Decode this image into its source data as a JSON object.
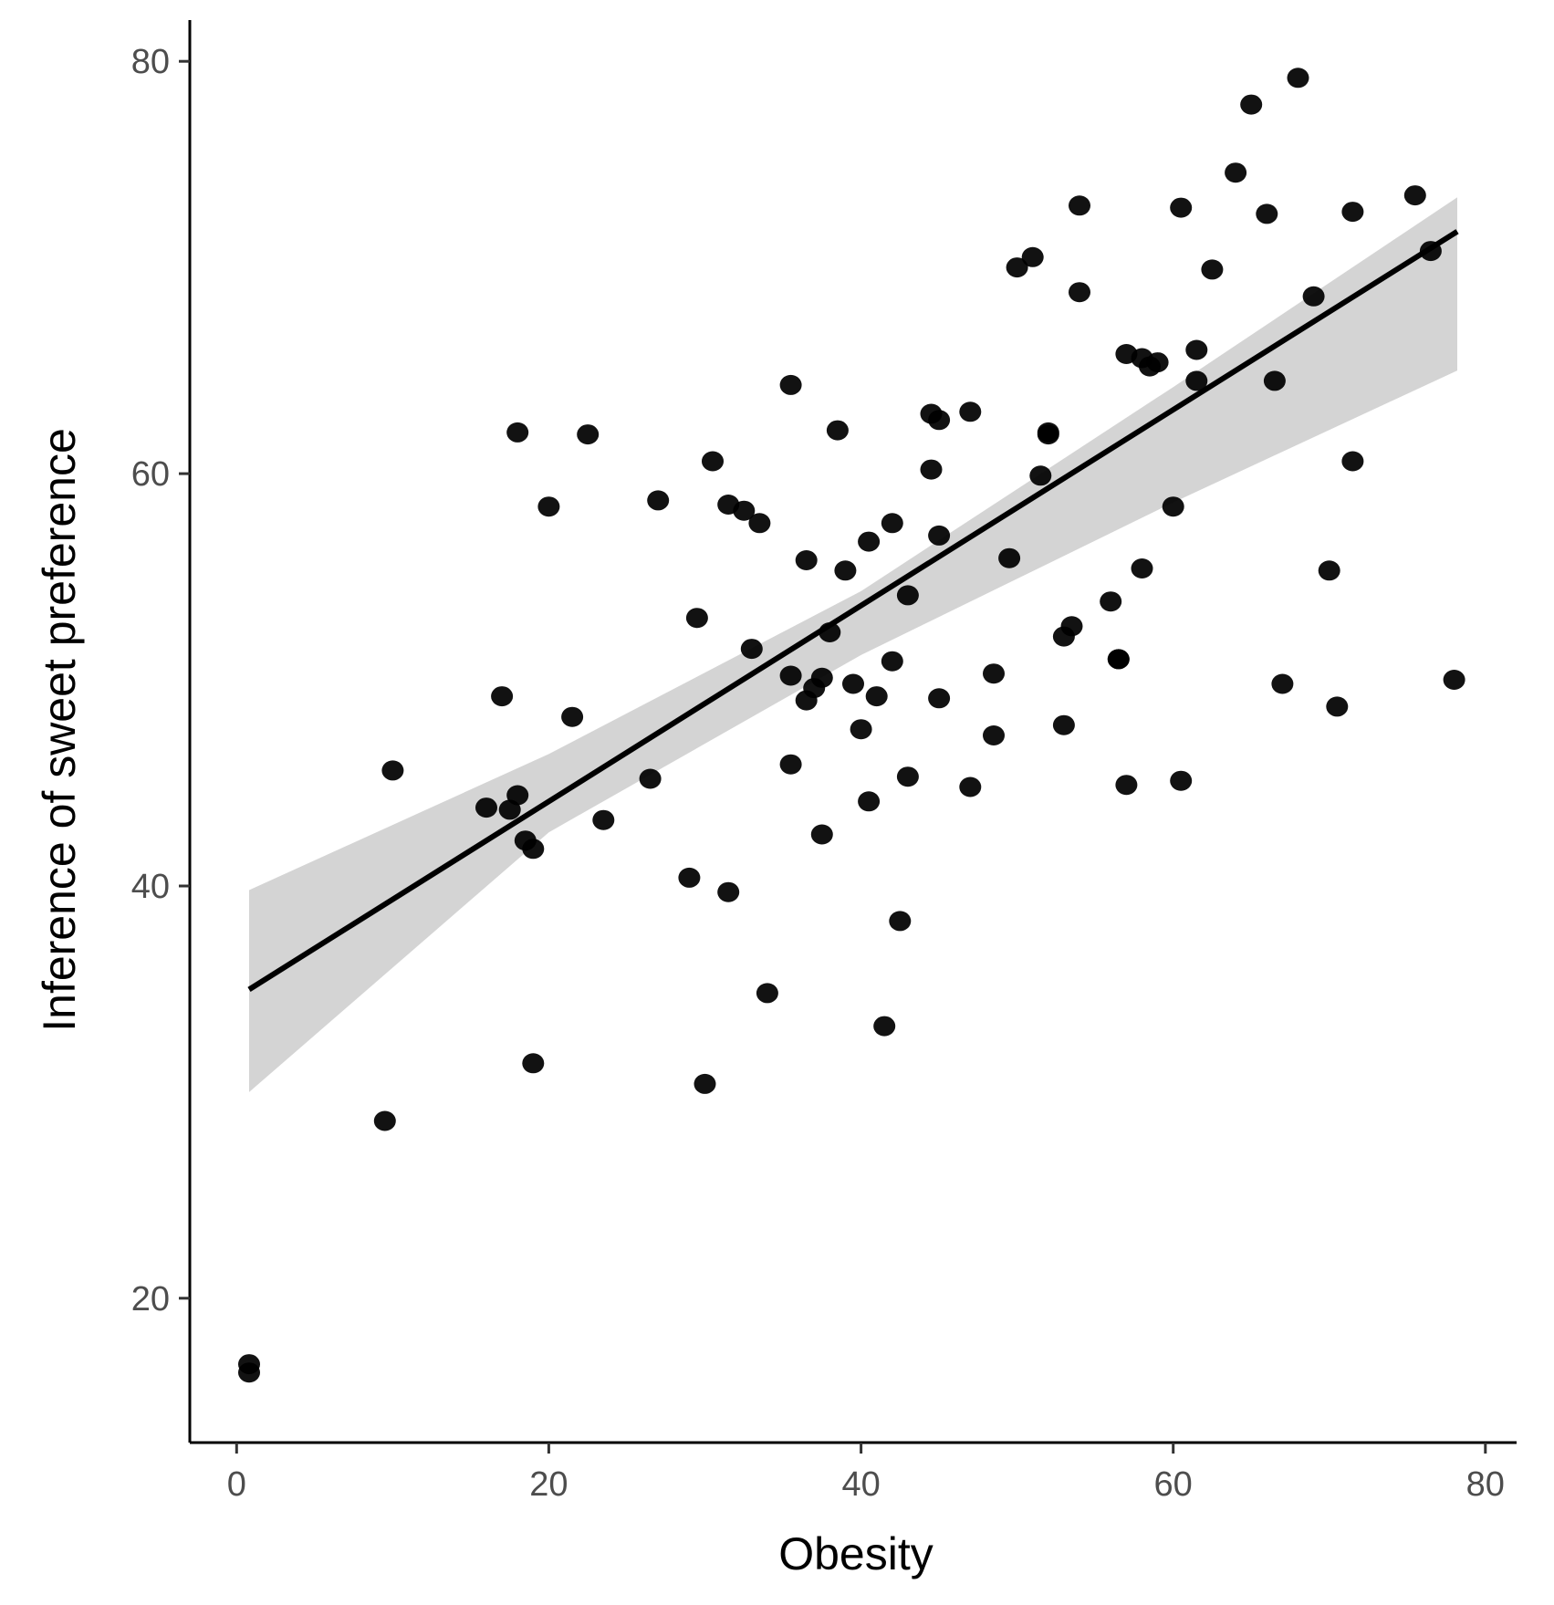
{
  "chart_data": {
    "type": "scatter",
    "title": "",
    "xlabel": "Obesity",
    "ylabel": "Inference of sweet preference",
    "xlim": [
      -3,
      82
    ],
    "ylim": [
      13,
      82
    ],
    "x_ticks": [
      0,
      20,
      40,
      60,
      80
    ],
    "y_ticks": [
      20,
      40,
      60,
      80
    ],
    "grid": false,
    "legend": "none",
    "colors": {
      "points": "#000000",
      "fit_line": "#000000",
      "confidence_band": "#cccccc",
      "axis": "#000000",
      "tick_label": "#4d4d4d"
    },
    "series": [
      {
        "name": "observations",
        "points": [
          [
            0.8,
            16.8
          ],
          [
            0.8,
            16.4
          ],
          [
            9.5,
            28.6
          ],
          [
            10,
            45.6
          ],
          [
            16,
            43.8
          ],
          [
            17,
            49.2
          ],
          [
            17.5,
            43.7
          ],
          [
            18,
            44.4
          ],
          [
            18,
            62.0
          ],
          [
            18.5,
            42.2
          ],
          [
            19,
            41.8
          ],
          [
            19,
            31.4
          ],
          [
            20,
            58.4
          ],
          [
            21.5,
            48.2
          ],
          [
            22.5,
            61.9
          ],
          [
            23.5,
            43.2
          ],
          [
            26.5,
            45.2
          ],
          [
            27,
            58.7
          ],
          [
            29,
            40.4
          ],
          [
            29.5,
            53.0
          ],
          [
            30,
            30.4
          ],
          [
            30.5,
            60.6
          ],
          [
            31.5,
            58.5
          ],
          [
            31.5,
            39.7
          ],
          [
            32.5,
            58.2
          ],
          [
            33,
            51.5
          ],
          [
            33.5,
            57.6
          ],
          [
            34,
            34.8
          ],
          [
            35.5,
            50.2
          ],
          [
            35.5,
            45.9
          ],
          [
            35.5,
            64.3
          ],
          [
            36.5,
            55.8
          ],
          [
            36.5,
            49.0
          ],
          [
            37,
            49.6
          ],
          [
            37.5,
            50.1
          ],
          [
            37.5,
            42.5
          ],
          [
            38,
            52.3
          ],
          [
            38.5,
            62.1
          ],
          [
            39,
            55.3
          ],
          [
            39.5,
            49.8
          ],
          [
            40,
            47.6
          ],
          [
            40.5,
            56.7
          ],
          [
            40.5,
            44.1
          ],
          [
            41,
            49.2
          ],
          [
            41.5,
            33.2
          ],
          [
            42,
            50.9
          ],
          [
            42,
            57.6
          ],
          [
            42.5,
            38.3
          ],
          [
            43,
            54.1
          ],
          [
            43,
            45.3
          ],
          [
            44.5,
            60.2
          ],
          [
            44.5,
            62.9
          ],
          [
            45,
            62.6
          ],
          [
            45,
            57.0
          ],
          [
            45,
            49.1
          ],
          [
            47,
            44.8
          ],
          [
            47,
            63.0
          ],
          [
            48.5,
            50.3
          ],
          [
            48.5,
            47.3
          ],
          [
            49.5,
            55.9
          ],
          [
            50,
            70.0
          ],
          [
            51,
            70.5
          ],
          [
            51.5,
            59.9
          ],
          [
            52,
            61.9
          ],
          [
            52,
            62.0
          ],
          [
            53,
            52.1
          ],
          [
            53,
            47.8
          ],
          [
            53.5,
            52.6
          ],
          [
            54,
            68.8
          ],
          [
            54,
            73.0
          ],
          [
            56,
            53.8
          ],
          [
            56.5,
            51.0
          ],
          [
            56.5,
            51.0
          ],
          [
            57,
            65.8
          ],
          [
            57,
            44.9
          ],
          [
            58,
            65.6
          ],
          [
            58,
            55.4
          ],
          [
            58.5,
            65.2
          ],
          [
            59,
            65.4
          ],
          [
            60,
            58.4
          ],
          [
            60.5,
            72.9
          ],
          [
            60.5,
            45.1
          ],
          [
            61.5,
            66.0
          ],
          [
            61.5,
            64.5
          ],
          [
            62.5,
            69.9
          ],
          [
            64,
            74.6
          ],
          [
            65,
            77.9
          ],
          [
            66,
            72.6
          ],
          [
            66.5,
            64.5
          ],
          [
            67,
            49.8
          ],
          [
            68,
            79.2
          ],
          [
            69,
            68.6
          ],
          [
            70,
            55.3
          ],
          [
            70.5,
            48.7
          ],
          [
            71.5,
            60.6
          ],
          [
            71.5,
            72.7
          ],
          [
            75.5,
            73.5
          ],
          [
            76.5,
            70.8
          ],
          [
            78,
            50.0
          ]
        ]
      }
    ],
    "fit": {
      "name": "linear fit",
      "x_range": [
        0.8,
        78.2
      ],
      "intercept": 34.6,
      "slope": 0.475,
      "band_lower": [
        [
          0.8,
          30.0
        ],
        [
          20,
          42.6
        ],
        [
          40,
          51.2
        ],
        [
          60,
          58.6
        ],
        [
          78.2,
          65.0
        ]
      ],
      "band_upper": [
        [
          0.8,
          39.8
        ],
        [
          20,
          46.4
        ],
        [
          40,
          54.3
        ],
        [
          60,
          64.2
        ],
        [
          78.2,
          73.4
        ]
      ]
    }
  }
}
